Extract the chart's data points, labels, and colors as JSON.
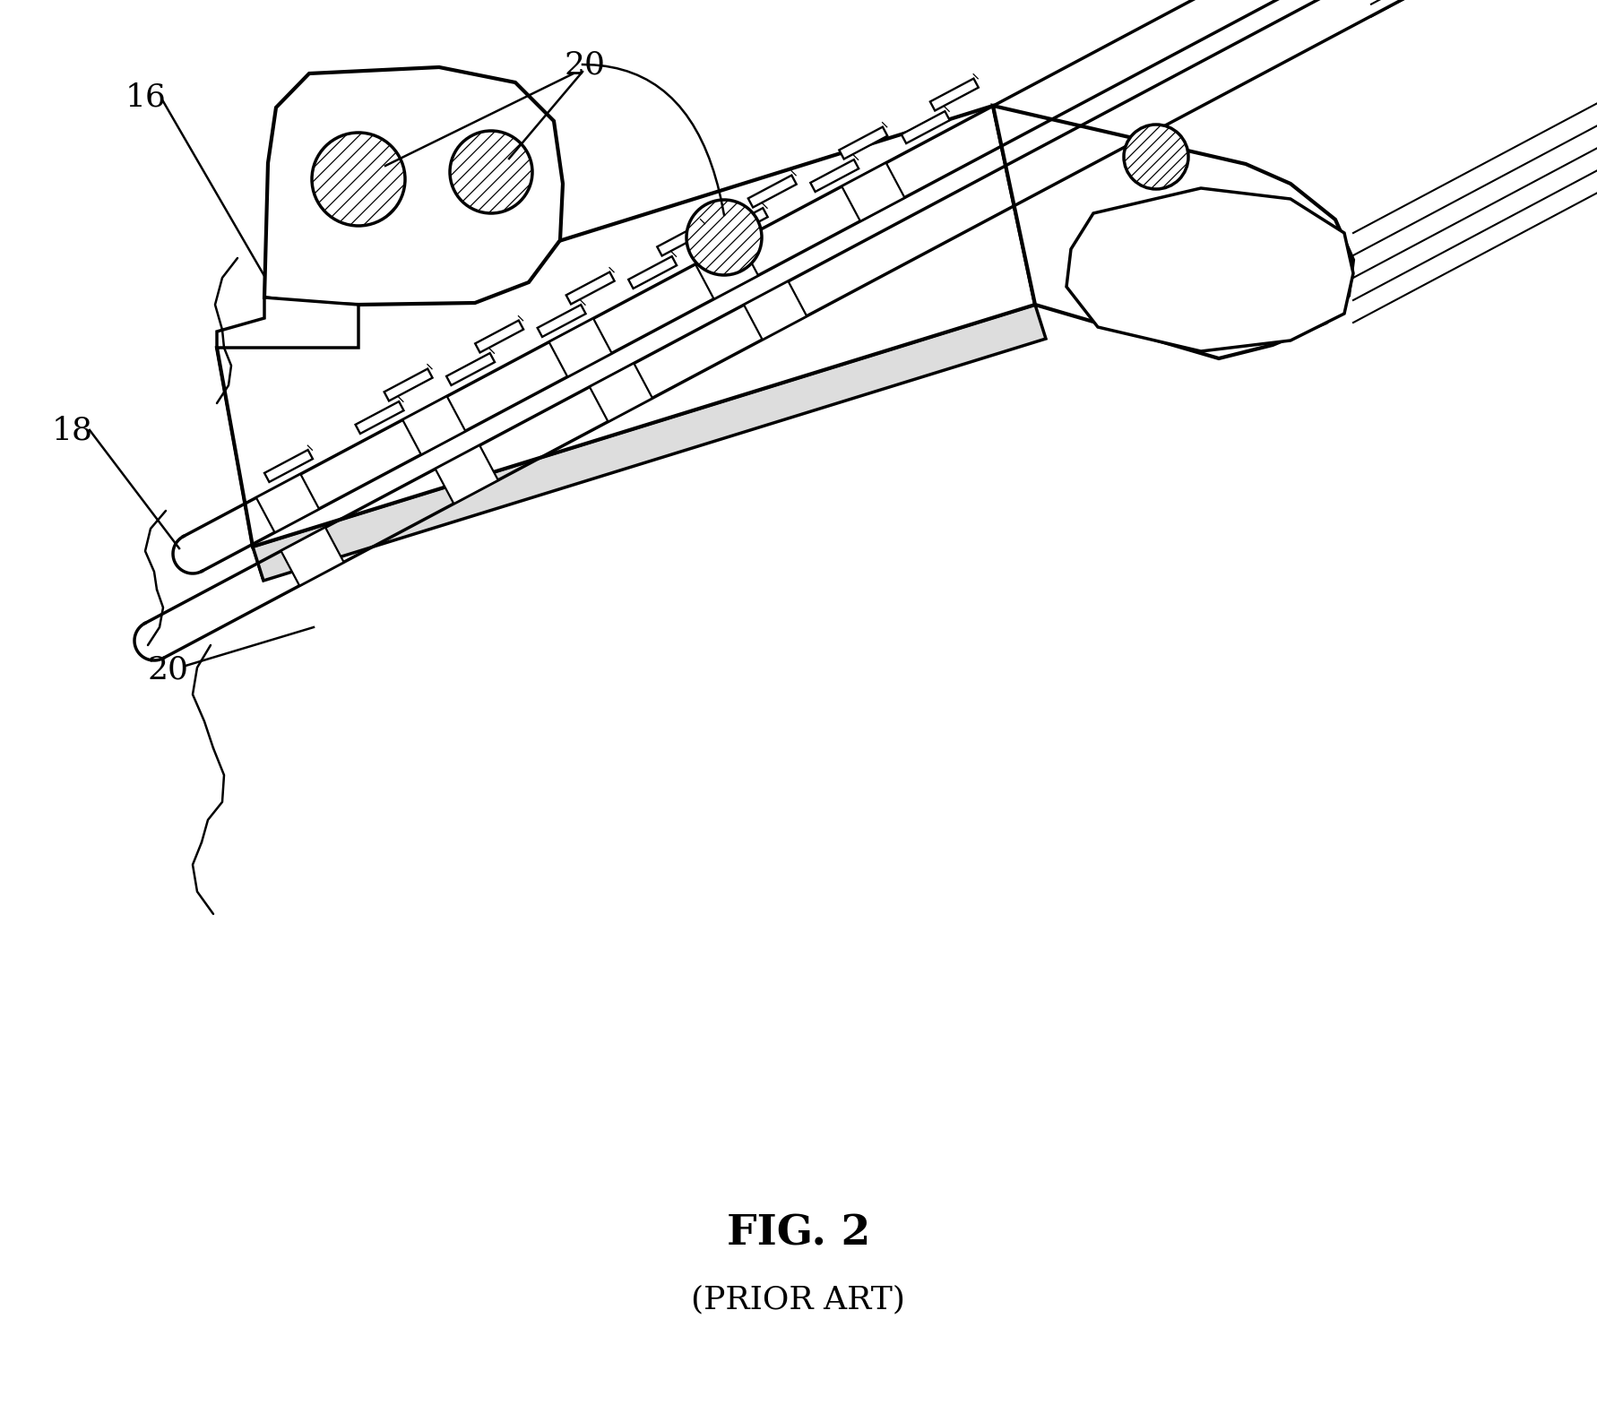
{
  "title": "FIG. 2",
  "subtitle": "(PRIOR ART)",
  "title_fontsize": 34,
  "subtitle_fontsize": 26,
  "bg_color": "#ffffff",
  "line_color": "#000000",
  "line_width": 2.5,
  "label_fontsize": 26,
  "fig_width": 17.83,
  "fig_height": 15.68,
  "dpi": 100
}
